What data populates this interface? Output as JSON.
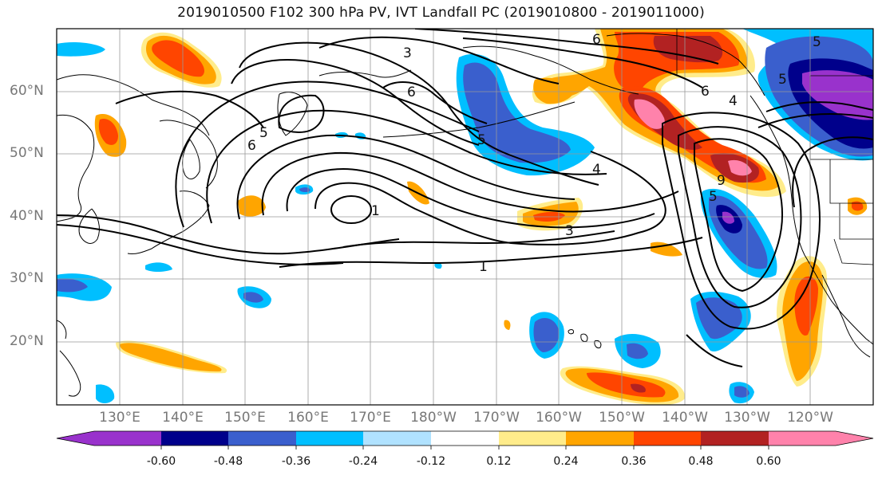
{
  "title": "2019010500 F102 300 hPa PV, IVT Landfall PC (2019010800 - 2019011000)",
  "lat_labels": [
    "60°N",
    "50°N",
    "40°N",
    "30°N",
    "20°N"
  ],
  "lon_labels": [
    "130°E",
    "140°E",
    "150°E",
    "160°E",
    "170°E",
    "180°W",
    "170°W",
    "160°W",
    "150°W",
    "140°W",
    "130°W",
    "120°W"
  ],
  "contour_labels": [
    "3",
    "6",
    "6",
    "5",
    "6",
    "1",
    "5",
    "4",
    "3",
    "1",
    "4",
    "6",
    "5",
    "5",
    "5",
    "9"
  ],
  "colorbar": {
    "colors": [
      "#9932cc",
      "#00008b",
      "#3a5fcd",
      "#00bfff",
      "#b0e2ff",
      "#ffffff",
      "#ffffff",
      "#ffec8b",
      "#ffa500",
      "#ff4500",
      "#b22222",
      "#ff82ab"
    ],
    "tick_labels": [
      "-0.60",
      "-0.48",
      "-0.36",
      "-0.24",
      "-0.12",
      "0.12",
      "0.24",
      "0.36",
      "0.48",
      "0.60"
    ]
  }
}
